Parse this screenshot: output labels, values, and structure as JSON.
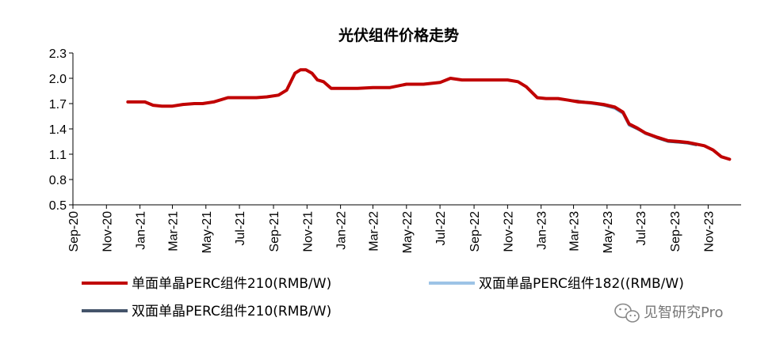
{
  "chart_data": {
    "type": "line",
    "title": "光伏组件价格走势",
    "ylim": [
      0.5,
      2.3
    ],
    "yticks": [
      "2.3",
      "2.0",
      "1.7",
      "1.4",
      "1.1",
      "0.8",
      "0.5"
    ],
    "xticks": [
      "Sep-20",
      "Nov-20",
      "Jan-21",
      "Mar-21",
      "May-21",
      "Jul-21",
      "Sep-21",
      "Nov-21",
      "Jan-22",
      "Mar-22",
      "May-22",
      "Jul-22",
      "Sep-22",
      "Nov-22",
      "Jan-23",
      "Mar-23",
      "May-23",
      "Jul-23",
      "Sep-23",
      "Nov-23"
    ],
    "legend_placement": "bottom",
    "series": [
      {
        "name": "单面单晶PERC组件210(RMB/W)",
        "color": "#c00000",
        "x": [
          "2020-12-10",
          "2021-01-10",
          "2021-01-25",
          "2021-02-10",
          "2021-03-01",
          "2021-03-20",
          "2021-04-10",
          "2021-04-25",
          "2021-05-15",
          "2021-06-10",
          "2021-07-01",
          "2021-08-01",
          "2021-08-20",
          "2021-09-10",
          "2021-09-25",
          "2021-10-10",
          "2021-10-20",
          "2021-10-30",
          "2021-11-10",
          "2021-11-20",
          "2021-12-01",
          "2021-12-15",
          "2022-01-01",
          "2022-02-01",
          "2022-03-01",
          "2022-04-01",
          "2022-05-01",
          "2022-06-01",
          "2022-07-01",
          "2022-07-20",
          "2022-08-10",
          "2022-08-20",
          "2022-09-10",
          "2022-10-10",
          "2022-11-01",
          "2022-11-20",
          "2022-12-05",
          "2022-12-25",
          "2023-01-10",
          "2023-02-01",
          "2023-02-20",
          "2023-03-10",
          "2023-04-01",
          "2023-04-25",
          "2023-05-15",
          "2023-05-30",
          "2023-06-10",
          "2023-06-25",
          "2023-07-10",
          "2023-08-01",
          "2023-08-20",
          "2023-09-10",
          "2023-09-25",
          "2023-10-10",
          "2023-10-25",
          "2023-11-10",
          "2023-11-25",
          "2023-12-10"
        ],
        "y": [
          1.72,
          1.72,
          1.68,
          1.67,
          1.67,
          1.69,
          1.7,
          1.7,
          1.72,
          1.77,
          1.77,
          1.77,
          1.78,
          1.8,
          1.86,
          2.06,
          2.1,
          2.1,
          2.06,
          1.98,
          1.96,
          1.88,
          1.88,
          1.88,
          1.89,
          1.89,
          1.93,
          1.93,
          1.95,
          2.0,
          1.98,
          1.98,
          1.98,
          1.98,
          1.98,
          1.96,
          1.9,
          1.77,
          1.76,
          1.76,
          1.74,
          1.72,
          1.71,
          1.69,
          1.66,
          1.6,
          1.46,
          1.41,
          1.35,
          1.3,
          1.26,
          1.25,
          1.24,
          1.22,
          1.2,
          1.15,
          1.07,
          1.04
        ]
      },
      {
        "name": "双面单晶PERC组件182((RMB/W)",
        "color": "#9dc3e6",
        "x": [
          "2023-02-20",
          "2023-03-10",
          "2023-04-01",
          "2023-04-25",
          "2023-05-15",
          "2023-05-30",
          "2023-06-10",
          "2023-06-25",
          "2023-07-10",
          "2023-08-01",
          "2023-08-20",
          "2023-09-10",
          "2023-09-25",
          "2023-10-10"
        ],
        "y": [
          1.74,
          1.72,
          1.7,
          1.68,
          1.64,
          1.58,
          1.44,
          1.4,
          1.34,
          1.29,
          1.25,
          1.24,
          1.23,
          1.21
        ]
      },
      {
        "name": "双面单晶PERC组件210(RMB/W)",
        "color": "#44546a",
        "x": [
          "2023-02-20",
          "2023-03-10",
          "2023-04-01",
          "2023-04-25",
          "2023-05-15",
          "2023-05-30",
          "2023-06-10",
          "2023-06-25",
          "2023-07-10",
          "2023-08-01",
          "2023-08-20",
          "2023-09-10",
          "2023-09-25",
          "2023-10-10"
        ],
        "y": [
          1.74,
          1.73,
          1.71,
          1.68,
          1.65,
          1.59,
          1.45,
          1.4,
          1.35,
          1.29,
          1.25,
          1.24,
          1.23,
          1.21
        ]
      }
    ]
  },
  "watermark": {
    "text": "见智研究Pro",
    "icon": "wechat-icon"
  }
}
